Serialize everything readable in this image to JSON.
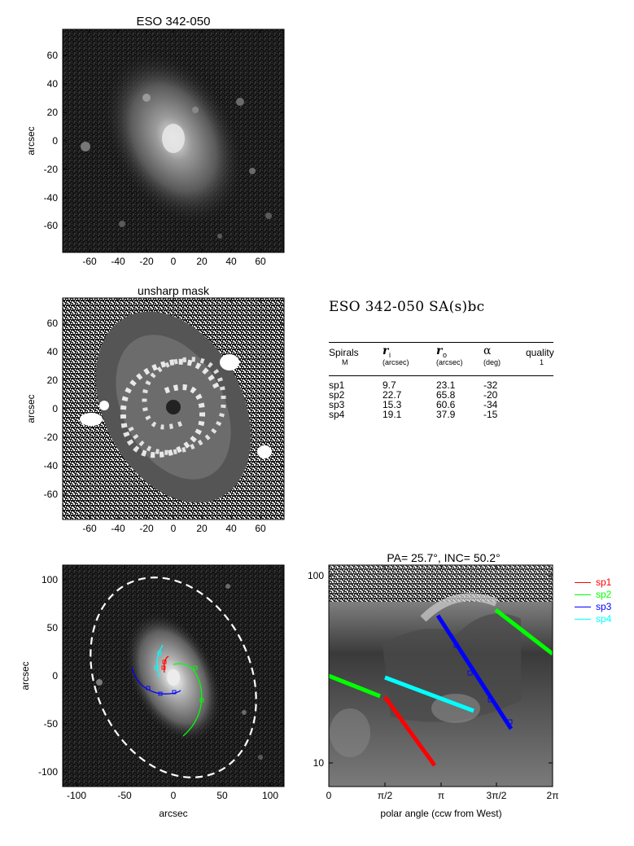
{
  "panels": {
    "top": {
      "title": "ESO 342-050",
      "ylabel": "arcsec",
      "xticks": [
        "-60",
        "-40",
        "-20",
        "0",
        "20",
        "40",
        "60"
      ],
      "yticks": [
        "60",
        "40",
        "20",
        "0",
        "-20",
        "-40",
        "-60"
      ]
    },
    "middle": {
      "title": "unsharp mask",
      "ylabel": "arcsec",
      "xticks": [
        "-60",
        "-40",
        "-20",
        "0",
        "20",
        "40",
        "60"
      ],
      "yticks": [
        "60",
        "40",
        "20",
        "0",
        "-20",
        "-40",
        "-60"
      ]
    },
    "bottom_left": {
      "xlabel": "arcsec",
      "ylabel": "arcsec",
      "xticks": [
        "-100",
        "-50",
        "0",
        "50",
        "100"
      ],
      "yticks": [
        "100",
        "50",
        "0",
        "-50",
        "-100"
      ]
    },
    "bottom_right": {
      "title": "PA=  25.7°, INC=  50.2°",
      "xlabel": "polar angle (ccw from West)",
      "xticks": [
        "0",
        "π/2",
        "π",
        "3π/2",
        "2π"
      ],
      "yticks": [
        "100",
        "10"
      ]
    }
  },
  "info": {
    "title": "ESO 342-050  SA(s)bc",
    "headers": {
      "spirals": "Spirals",
      "spirals_sub": "M",
      "ri": "r",
      "ri_sub": "i",
      "ri_unit": "(arcsec)",
      "ro": "r",
      "ro_sub": "o",
      "ro_unit": "(arcsec)",
      "alpha": "α",
      "alpha_unit": "(deg)",
      "quality": "quality",
      "quality_sub": "1"
    },
    "rows": [
      {
        "name": "sp1",
        "ri": "9.7",
        "ro": "23.1",
        "alpha": "-32"
      },
      {
        "name": "sp2",
        "ri": "22.7",
        "ro": "65.8",
        "alpha": "-20"
      },
      {
        "name": "sp3",
        "ri": "15.3",
        "ro": "60.6",
        "alpha": "-34"
      },
      {
        "name": "sp4",
        "ri": "19.1",
        "ro": "37.9",
        "alpha": "-15"
      }
    ]
  },
  "legend": [
    {
      "label": "sp1",
      "color": "#ff0000"
    },
    {
      "label": "sp2",
      "color": "#00ff00"
    },
    {
      "label": "sp3",
      "color": "#0000ff"
    },
    {
      "label": "sp4",
      "color": "#00ffff"
    }
  ]
}
